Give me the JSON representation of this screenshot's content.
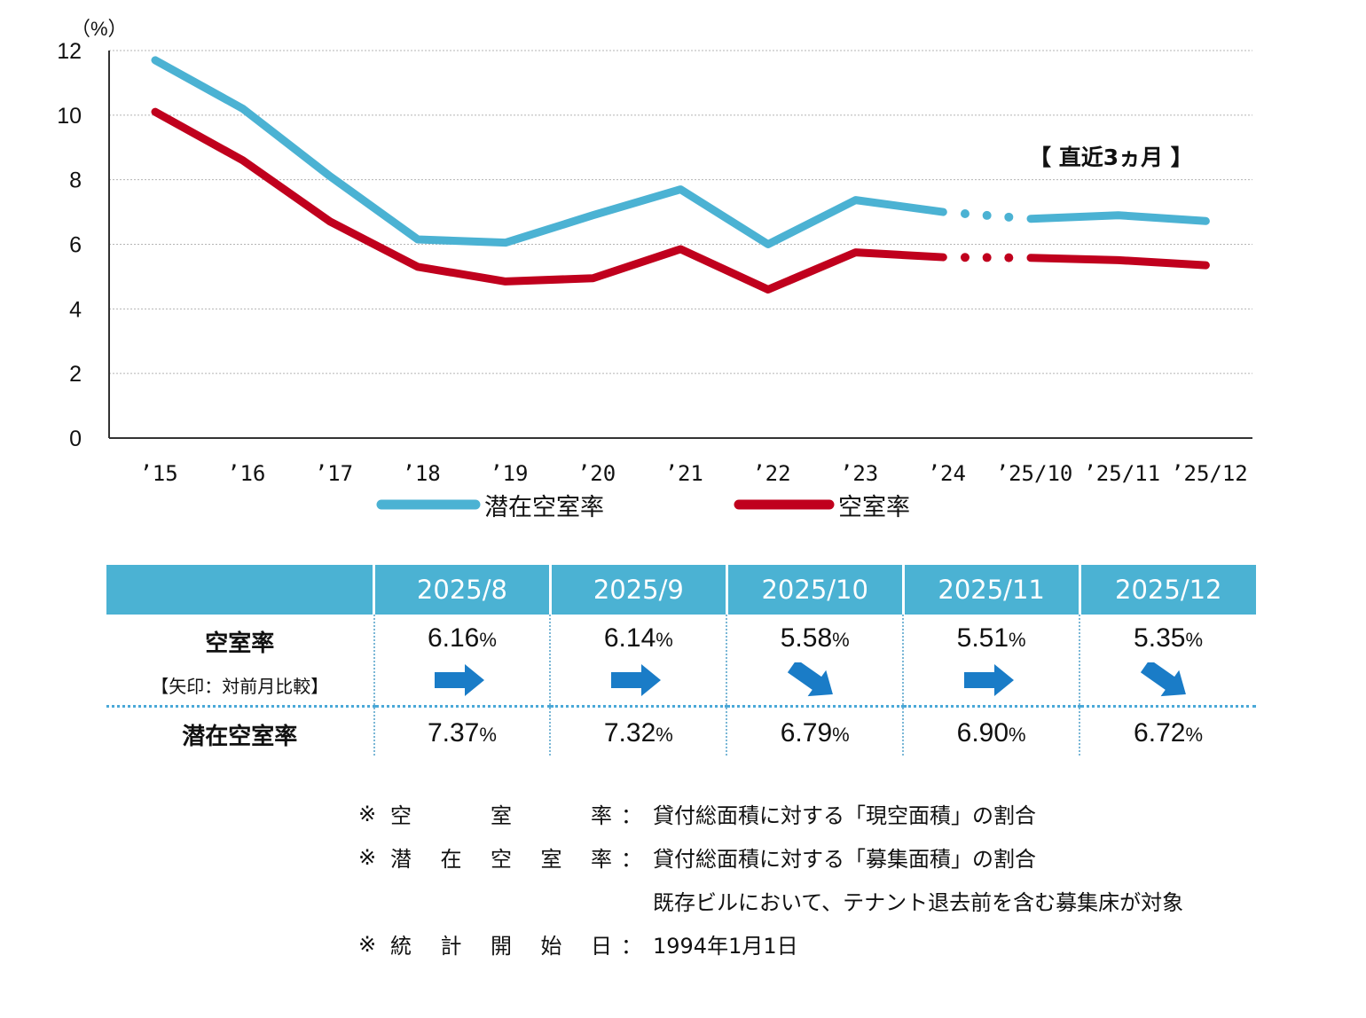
{
  "chart_data": {
    "type": "line",
    "y_unit_label": "（%）",
    "ylim": [
      0,
      12
    ],
    "yticks": [
      "0",
      "2",
      "4",
      "6",
      "8",
      "10",
      "12"
    ],
    "categories": [
      "’15",
      "’16",
      "’17",
      "’18",
      "’19",
      "’20",
      "’21",
      "’22",
      "’23",
      "’24",
      "’25/10",
      "’25/11",
      "’25/12"
    ],
    "series": [
      {
        "name": "潜在空室率",
        "color": "#4bb2d3",
        "values": [
          11.7,
          10.2,
          8.1,
          6.15,
          6.05,
          6.9,
          7.7,
          6.0,
          7.37,
          7.0,
          6.79,
          6.9,
          6.72
        ]
      },
      {
        "name": "空室率",
        "color": "#c0001d",
        "values": [
          10.1,
          8.6,
          6.7,
          5.3,
          4.85,
          4.95,
          5.85,
          4.6,
          5.75,
          5.6,
          5.58,
          5.51,
          5.35
        ]
      }
    ],
    "dotted_segment_between": [
      "’24",
      "’25/10"
    ],
    "annotation": "【 直近3ヵ月 】",
    "grid": "horizontal dotted"
  },
  "table": {
    "columns": [
      "2025/8",
      "2025/9",
      "2025/10",
      "2025/11",
      "2025/12"
    ],
    "vacancy_label": "空室率",
    "arrow_label": "【矢印：対前月比較】",
    "vacancy": [
      "6.16",
      "6.14",
      "5.58",
      "5.51",
      "5.35"
    ],
    "arrows": [
      "flat",
      "flat",
      "down",
      "flat",
      "down"
    ],
    "potential_label": "潜在空室率",
    "potential": [
      "7.37",
      "7.32",
      "6.79",
      "6.90",
      "6.72"
    ],
    "pct": "%",
    "arrow_color": "#1a7cc7"
  },
  "notes": [
    {
      "mark": "※",
      "label": [
        "空",
        "室",
        "率"
      ],
      "colon": "：",
      "desc": "貸付総面積に対する「現空面積」の割合"
    },
    {
      "mark": "※",
      "label": [
        "潜",
        "在",
        "空",
        "室",
        "率"
      ],
      "colon": "：",
      "desc": "貸付総面積に対する「募集面積」の割合"
    },
    {
      "mark": "",
      "label": [],
      "colon": "",
      "desc": "既存ビルにおいて、テナント退去前を含む募集床が対象"
    },
    {
      "mark": "※",
      "label": [
        "統",
        "計",
        "開",
        "始",
        "日"
      ],
      "colon": "：",
      "desc": "1994年1月1日"
    }
  ]
}
